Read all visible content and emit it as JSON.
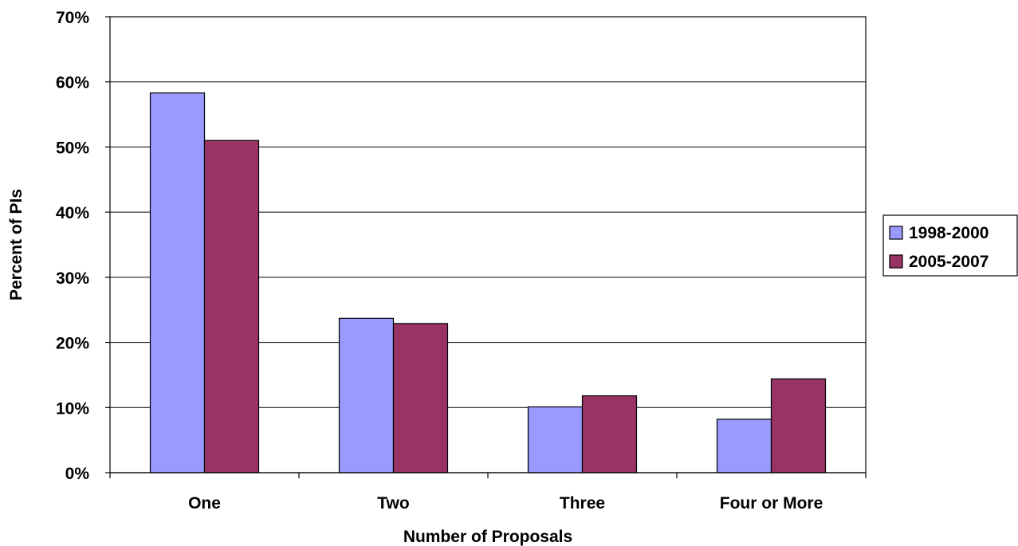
{
  "chart_data": {
    "type": "bar",
    "title": "",
    "xlabel": "Number of Proposals",
    "ylabel": "Percent of PIs",
    "categories": [
      "One",
      "Two",
      "Three",
      "Four or More"
    ],
    "series": [
      {
        "name": "1998-2000",
        "color": "#9999ff",
        "values": [
          58.3,
          23.7,
          10.1,
          8.2
        ]
      },
      {
        "name": "2005-2007",
        "color": "#993366",
        "values": [
          51.0,
          22.9,
          11.8,
          14.4
        ]
      }
    ],
    "ylim": [
      0,
      70
    ],
    "yticks": [
      "0%",
      "10%",
      "20%",
      "30%",
      "40%",
      "50%",
      "60%",
      "70%"
    ],
    "grid": true,
    "legend_position": "right"
  }
}
